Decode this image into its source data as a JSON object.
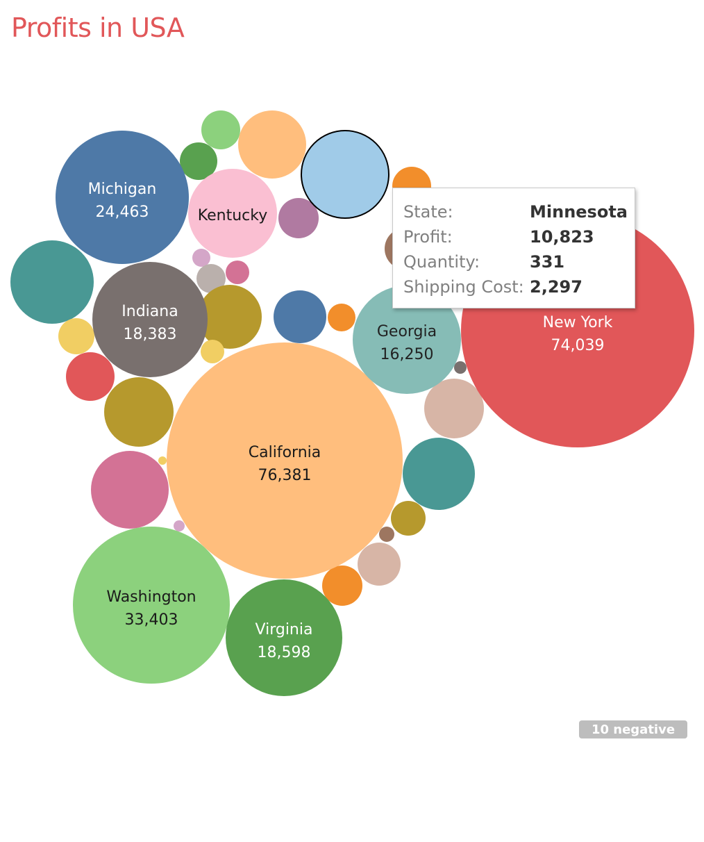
{
  "title": "Profits in USA",
  "colors": {
    "title": "#e15759",
    "tooltip_border": "#c8c8c8",
    "badge_bg": "#bdbdbd",
    "highlight_stroke": "#000000"
  },
  "chart_data": {
    "type": "packed-bubble",
    "title": "Profits in USA",
    "size_measure": "Profit",
    "color_dimension": "State",
    "labeled_bubbles": [
      {
        "state": "California",
        "profit": "76,381",
        "color": "#ffbe7d"
      },
      {
        "state": "New York",
        "profit": "74,039",
        "color": "#e15759"
      },
      {
        "state": "Washington",
        "profit": "33,403",
        "color": "#8cd17d"
      },
      {
        "state": "Michigan",
        "profit": "24,463",
        "color": "#4e79a7"
      },
      {
        "state": "Virginia",
        "profit": "18,598",
        "color": "#59a14f"
      },
      {
        "state": "Indiana",
        "profit": "18,383",
        "color": "#79706e"
      },
      {
        "state": "Georgia",
        "profit": "16,250",
        "color": "#86bcb6"
      },
      {
        "state": "Kentucky",
        "profit": "",
        "color": "#fabfd2"
      }
    ],
    "unlabeled_bubble_colors": [
      "#8cd17d",
      "#ffbe7d",
      "#59a14f",
      "#a0cbe8",
      "#f28e2b",
      "#b07aa1",
      "#9d7660",
      "#499894",
      "#d4a6c8",
      "#bab0ac",
      "#d37295",
      "#b6992d",
      "#4e79a7",
      "#f28e2b",
      "#f1ce63",
      "#f1ce63",
      "#e15759",
      "#b6992d",
      "#79706e",
      "#d7b5a6",
      "#d37295",
      "#f1ce63",
      "#499894",
      "#d4a6c8",
      "#b6992d",
      "#9d7660",
      "#d7b5a6",
      "#f28e2b",
      "#ffbe7d"
    ],
    "highlighted": "Minnesota",
    "negative_count_label": "10 negative"
  },
  "tooltip": {
    "rows": [
      {
        "label": "State:",
        "value": "Minnesota"
      },
      {
        "label": "Profit:",
        "value": "10,823"
      },
      {
        "label": "Quantity:",
        "value": "331"
      },
      {
        "label": "Shipping Cost:",
        "value": "2,297"
      }
    ]
  },
  "badge": {
    "label": "10 negative"
  }
}
